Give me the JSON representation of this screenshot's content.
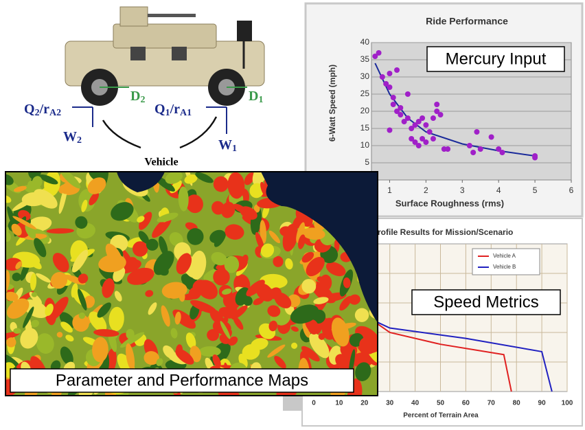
{
  "vehicle_diagram": {
    "caption": "Vehicle",
    "force_labels": [
      {
        "parts": [
          "Q",
          "2",
          "/r",
          "A2"
        ]
      },
      {
        "parts": [
          "Q",
          "1",
          "/r",
          "A1"
        ]
      },
      {
        "parts": [
          "W",
          "2"
        ]
      },
      {
        "parts": [
          "W",
          "1"
        ]
      }
    ],
    "offset_labels": [
      {
        "parts": [
          "D",
          "2"
        ]
      },
      {
        "parts": [
          "D",
          "1"
        ]
      }
    ]
  },
  "ride_chart": {
    "type": "scatter",
    "title": "Ride Performance",
    "x_label": "Surface Roughness (rms)",
    "y_label": "6-Watt Speed (mph)",
    "callout": "Mercury Input",
    "xlim": [
      0.5,
      6
    ],
    "ylim": [
      0,
      40
    ],
    "xticks": [
      1,
      2,
      3,
      4,
      5,
      6
    ],
    "yticks": [
      5,
      10,
      15,
      20,
      25,
      30,
      35,
      40
    ],
    "color": "#a020c8",
    "x": [
      0.6,
      0.7,
      0.8,
      0.9,
      1.0,
      1.0,
      1.1,
      1.1,
      1.2,
      1.3,
      1.3,
      1.4,
      1.5,
      1.6,
      1.7,
      1.8,
      1.2,
      1.5,
      1.0,
      1.7,
      1.8,
      1.9,
      2.0,
      2.1,
      2.2,
      2.3,
      2.3,
      2.4,
      2.5,
      2.6,
      2.0,
      2.2,
      3.2,
      3.3,
      3.4,
      3.5,
      3.8,
      4.0,
      4.1,
      5.0,
      5.0,
      1.6,
      1.9
    ],
    "values": [
      36,
      37,
      30,
      28,
      27,
      31,
      24,
      22,
      20,
      21,
      19,
      17,
      18,
      15,
      16,
      17,
      32,
      25,
      14.5,
      11,
      10,
      12,
      11,
      14,
      18,
      20,
      22,
      19,
      9,
      9,
      16,
      12,
      10,
      8,
      14,
      9,
      12.5,
      9,
      8,
      7,
      6.5,
      12,
      18
    ],
    "trendline": {
      "color": "#1a2a9a",
      "x": [
        0.6,
        1,
        1.5,
        2,
        3,
        4,
        5
      ],
      "values": [
        34,
        25,
        18,
        14,
        10.5,
        8.5,
        7
      ]
    },
    "grid": true
  },
  "speed_chart": {
    "type": "line",
    "title": "rofile Results for Mission/Scenario",
    "x_label": "Percent of Terrain Area",
    "callout": "Speed Metrics",
    "xlim": [
      0,
      100
    ],
    "ylim": [
      0,
      10
    ],
    "xticks": [
      0,
      10,
      20,
      30,
      40,
      50,
      60,
      70,
      80,
      90,
      100
    ],
    "grid": true,
    "series": [
      {
        "name": "Vehicle A",
        "color": "#e02020",
        "x": [
          25,
          30,
          50,
          75,
          78
        ],
        "values": [
          4.6,
          4.0,
          3.2,
          2.5,
          0
        ]
      },
      {
        "name": "Vehicle B",
        "color": "#2020c0",
        "x": [
          25,
          30,
          60,
          90,
          94
        ],
        "values": [
          4.7,
          4.3,
          3.6,
          2.7,
          0
        ]
      }
    ]
  },
  "map": {
    "caption": "Parameter and Performance Maps"
  }
}
